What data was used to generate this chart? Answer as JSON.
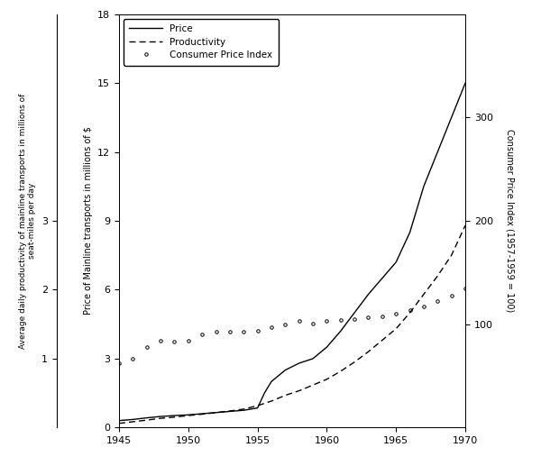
{
  "ylabel_left_inner": "Price of Mainline transports in millions of $",
  "ylabel_left_outer": "Average daily productivity of mainline transports in millions of\nseat-miles per day",
  "ylabel_right": "Consumer Price Index (1957-1959 = 100)",
  "xlim": [
    1945,
    1970
  ],
  "ylim_left": [
    0,
    18
  ],
  "ylim_right": [
    0,
    400
  ],
  "xticks": [
    1945,
    1950,
    1955,
    1960,
    1965,
    1970
  ],
  "yticks_left_inner": [
    0,
    3,
    6,
    9,
    12,
    15,
    18
  ],
  "yticks_left_outer_vals": [
    1,
    2,
    3
  ],
  "yticks_left_outer_pos": [
    6,
    12,
    18
  ],
  "yticks_right": [
    100,
    200,
    300
  ],
  "price_x": [
    1945,
    1946,
    1947,
    1948,
    1949,
    1950,
    1951,
    1952,
    1953,
    1954,
    1955,
    1955.5,
    1956,
    1957,
    1958,
    1959,
    1960,
    1961,
    1962,
    1963,
    1964,
    1965,
    1966,
    1966.5,
    1967,
    1968,
    1969,
    1970
  ],
  "price_y": [
    0.3,
    0.35,
    0.42,
    0.48,
    0.52,
    0.55,
    0.6,
    0.65,
    0.7,
    0.75,
    0.85,
    1.5,
    2.0,
    2.5,
    2.8,
    3.0,
    3.5,
    4.2,
    5.0,
    5.8,
    6.5,
    7.2,
    8.5,
    9.5,
    10.5,
    12.0,
    13.5,
    15.0
  ],
  "productivity_x": [
    1945,
    1946,
    1947,
    1948,
    1949,
    1950,
    1951,
    1952,
    1953,
    1954,
    1955,
    1956,
    1957,
    1958,
    1959,
    1960,
    1961,
    1962,
    1963,
    1964,
    1965,
    1966,
    1967,
    1968,
    1969,
    1970
  ],
  "productivity_y": [
    0.18,
    0.25,
    0.32,
    0.4,
    0.45,
    0.52,
    0.58,
    0.65,
    0.72,
    0.8,
    0.95,
    1.15,
    1.4,
    1.6,
    1.85,
    2.1,
    2.45,
    2.85,
    3.3,
    3.8,
    4.3,
    5.0,
    5.8,
    6.6,
    7.5,
    8.8
  ],
  "cpi_x": [
    1945,
    1946,
    1947,
    1948,
    1949,
    1950,
    1951,
    1952,
    1953,
    1954,
    1955,
    1956,
    1957,
    1958,
    1959,
    1960,
    1961,
    1962,
    1963,
    1964,
    1965,
    1966,
    1967,
    1968,
    1969,
    1970
  ],
  "cpi_y": [
    62,
    67,
    78,
    84,
    83,
    84,
    90,
    93,
    93,
    93,
    94,
    97,
    100,
    103,
    101,
    103,
    104,
    105,
    107,
    108,
    110,
    114,
    117,
    122,
    128,
    135
  ],
  "bg_color": "#ffffff",
  "line_color": "#000000",
  "legend_price_label": "Price",
  "legend_productivity_label": "Productivity",
  "legend_cpi_label": "Consumer Price Index"
}
